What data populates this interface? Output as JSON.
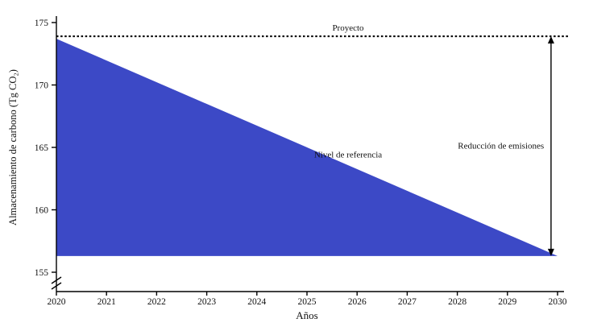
{
  "page": {
    "background": "#ffffff"
  },
  "chart_data": {
    "type": "area",
    "title": "",
    "xlabel": "Años",
    "ylabel": "Almacenamiento de carbono (Tg CO₂)",
    "xlim": [
      2020,
      2030
    ],
    "ylim": [
      155,
      175
    ],
    "x_ticks": [
      2020,
      2021,
      2022,
      2023,
      2024,
      2025,
      2026,
      2027,
      2028,
      2029,
      2030
    ],
    "y_ticks": [
      155,
      160,
      165,
      170,
      175
    ],
    "y_axis_break": true,
    "grid": false,
    "legend": "none",
    "colors": {
      "area_fill": "#3c49c6",
      "axis": "#000000",
      "text": "#111111",
      "project_line": "#000000"
    },
    "series": [
      {
        "name": "Nivel de referencia",
        "type": "area",
        "x": [
          2020,
          2030
        ],
        "y": [
          173.7,
          156.3
        ],
        "baseline": 156.3
      },
      {
        "name": "Proyecto",
        "type": "dotted_hline",
        "value": 173.9
      }
    ],
    "annotations": [
      {
        "id": "proyecto-label",
        "text": "Proyecto",
        "x": 2025.82,
        "y": 174.35
      },
      {
        "id": "nivel-label",
        "text": "Nivel de referencia",
        "x": 2025.82,
        "y": 164.2
      },
      {
        "id": "reduccion-label",
        "text": "Reducción de emisiones",
        "x": 2028.87,
        "y": 164.9
      },
      {
        "id": "emission-arrow",
        "type": "double_arrow",
        "x": 2029.87,
        "y_top": 173.9,
        "y_bottom": 156.3
      }
    ]
  }
}
